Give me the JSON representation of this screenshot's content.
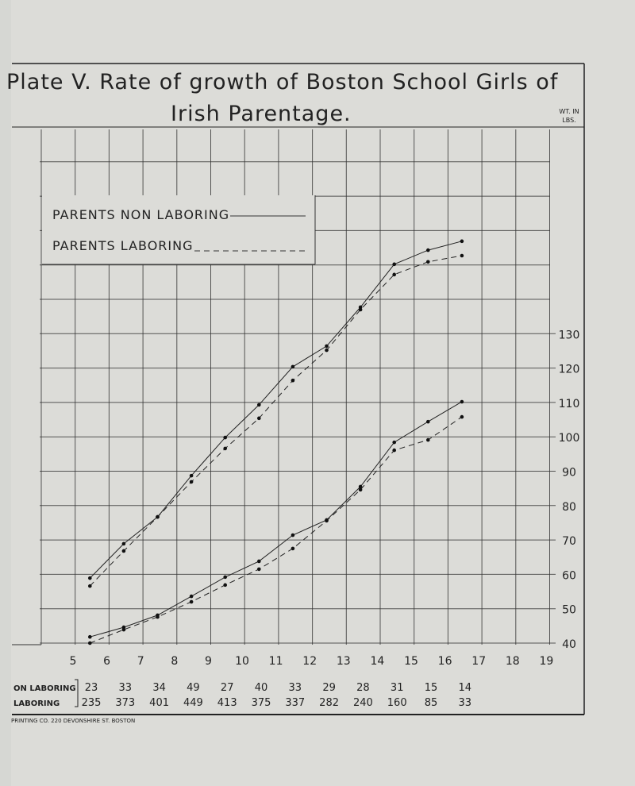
{
  "chart_data": {
    "type": "line",
    "title": "Plate V. Rate of growth of Boston School Girls of Irish Parentage.",
    "title_line1": "Plate V.   Rate of growth of Boston School Girls of",
    "title_line2": "Irish Parentage.",
    "ylabel_line1": "WT. IN",
    "ylabel_line2": "LBS.",
    "ylim": [
      40,
      170
    ],
    "y_ticks": [
      "130",
      "120",
      "110",
      "100",
      "90",
      "80",
      "70",
      "60",
      "50",
      "40"
    ],
    "y_tick_values": [
      130,
      120,
      110,
      100,
      90,
      80,
      70,
      60,
      50,
      40
    ],
    "xlim": [
      4.5,
      19
    ],
    "x_ticks": [
      "5",
      "6",
      "7",
      "8",
      "9",
      "10",
      "11",
      "12",
      "13",
      "14",
      "15",
      "16",
      "17",
      "18",
      "19"
    ],
    "x": [
      5.5,
      6.5,
      7.5,
      8.5,
      9.5,
      10.5,
      11.5,
      12.5,
      13.5,
      14.5,
      15.5,
      16.5
    ],
    "grid": true,
    "legend": {
      "placement": "top-left",
      "entries": [
        "Parents non laboring",
        "Parents laboring"
      ]
    },
    "series": [
      {
        "name": "Parents non laboring (upper curve)",
        "style": "solid",
        "values": [
          58.9,
          68.9,
          76.7,
          88.7,
          99.8,
          109.3,
          120.4,
          126.4,
          137.7,
          150.2,
          154.3,
          156.9
        ]
      },
      {
        "name": "Parents laboring (upper curve)",
        "style": "dashed",
        "values": [
          56.6,
          66.8,
          76.7,
          86.9,
          96.6,
          105.4,
          116.4,
          125.2,
          137.0,
          147.2,
          150.9,
          152.7
        ]
      },
      {
        "name": "Parents non laboring (weight)",
        "style": "solid",
        "values": [
          41.8,
          44.6,
          48.1,
          53.6,
          59.2,
          63.8,
          71.4,
          75.8,
          85.5,
          98.4,
          104.4,
          110.2
        ]
      },
      {
        "name": "Parents laboring (weight)",
        "style": "dashed",
        "values": [
          40.0,
          43.9,
          47.6,
          52.0,
          56.9,
          61.5,
          67.5,
          75.6,
          84.6,
          96.1,
          99.1,
          105.8
        ]
      }
    ],
    "counts_table": {
      "rows": [
        {
          "label": "ON LABORING",
          "values": [
            "23",
            "33",
            "34",
            "49",
            "27",
            "40",
            "33",
            "29",
            "28",
            "31",
            "15",
            "14"
          ]
        },
        {
          "label": "LABORING",
          "values": [
            "235",
            "373",
            "401",
            "449",
            "413",
            "375",
            "337",
            "282",
            "240",
            "160",
            "85",
            "33"
          ]
        }
      ]
    },
    "footer": "PRINTING CO. 220 DEVONSHIRE ST. BOSTON"
  }
}
